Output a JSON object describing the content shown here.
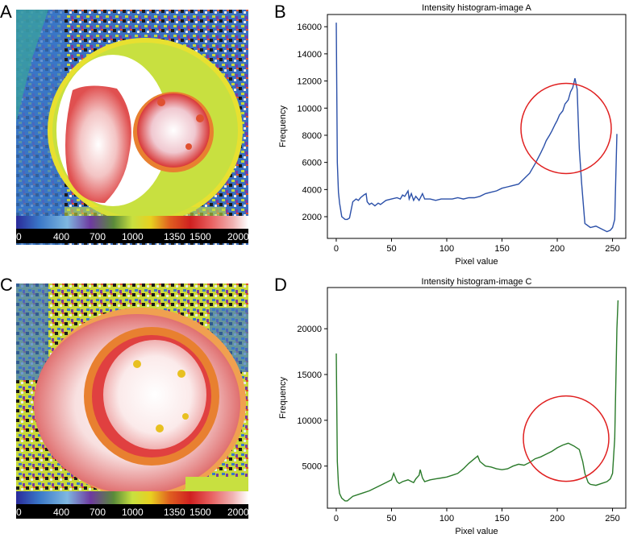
{
  "panels": {
    "a_letter": "A",
    "b_letter": "B",
    "c_letter": "C",
    "d_letter": "D"
  },
  "colorbar": {
    "tick_labels": [
      "0",
      "400",
      "700",
      "1000",
      "1350",
      "1500",
      "2000"
    ],
    "colors": [
      "#2a2a9a",
      "#3a78c8",
      "#7fb8e0",
      "#6e3aa0",
      "#5a8a3a",
      "#c8e040",
      "#e8d020",
      "#e06020",
      "#d02020",
      "#e86060",
      "#f0b0b0",
      "#ffffff"
    ]
  },
  "chart_data": [
    {
      "type": "line",
      "title": "Intensity histogram-image A",
      "xlabel": "Pixel value",
      "ylabel": "Frequency",
      "xlim": [
        -8,
        262
      ],
      "ylim": [
        400,
        16900
      ],
      "xticks": [
        0,
        50,
        100,
        150,
        200,
        250
      ],
      "yticks": [
        2000,
        4000,
        6000,
        8000,
        10000,
        12000,
        14000,
        16000
      ],
      "color": "#2a4fa8",
      "series": [
        {
          "name": "image A",
          "x": [
            0,
            1,
            2,
            3,
            5,
            8,
            10,
            12,
            15,
            18,
            20,
            22,
            25,
            27,
            28,
            30,
            32,
            35,
            38,
            40,
            45,
            50,
            55,
            58,
            60,
            62,
            65,
            66,
            68,
            70,
            72,
            75,
            78,
            80,
            85,
            90,
            95,
            100,
            105,
            110,
            115,
            120,
            125,
            130,
            135,
            140,
            145,
            150,
            155,
            160,
            165,
            170,
            175,
            180,
            185,
            188,
            190,
            193,
            195,
            198,
            200,
            202,
            205,
            207,
            210,
            212,
            214,
            216,
            218,
            219,
            220,
            222,
            225,
            230,
            235,
            240,
            245,
            248,
            250,
            252,
            254
          ],
          "y": [
            16300,
            6000,
            3800,
            3000,
            2000,
            1800,
            1800,
            1900,
            3100,
            3300,
            3200,
            3400,
            3600,
            3700,
            3100,
            2900,
            3000,
            2800,
            3000,
            2900,
            3200,
            3300,
            3400,
            3300,
            3600,
            3500,
            3900,
            3300,
            3700,
            3200,
            3500,
            3200,
            3700,
            3300,
            3300,
            3200,
            3300,
            3300,
            3300,
            3400,
            3300,
            3400,
            3400,
            3500,
            3700,
            3800,
            3900,
            4100,
            4200,
            4300,
            4400,
            4800,
            5200,
            5900,
            6700,
            7200,
            7600,
            8000,
            8300,
            8800,
            9100,
            9500,
            9800,
            10300,
            10600,
            11200,
            11500,
            12200,
            11400,
            9000,
            7000,
            4500,
            1500,
            1200,
            1300,
            1100,
            900,
            1000,
            1200,
            1800,
            8100
          ]
        }
      ],
      "annotations": [
        {
          "type": "circle",
          "center": [
            208,
            8500
          ]
        }
      ]
    },
    {
      "type": "line",
      "title": "Intensity histogram-image C",
      "xlabel": "Pixel value",
      "ylabel": "Frequency",
      "xlim": [
        -8,
        262
      ],
      "ylim": [
        400,
        24500
      ],
      "xticks": [
        0,
        50,
        100,
        150,
        200,
        250
      ],
      "yticks": [
        5000,
        10000,
        15000,
        20000
      ],
      "color": "#2a7a2a",
      "series": [
        {
          "name": "image C",
          "x": [
            0,
            1,
            2,
            3,
            5,
            8,
            10,
            12,
            15,
            20,
            25,
            30,
            35,
            40,
            45,
            50,
            52,
            55,
            57,
            60,
            65,
            70,
            72,
            75,
            76,
            78,
            80,
            85,
            90,
            95,
            100,
            105,
            110,
            115,
            120,
            125,
            128,
            130,
            135,
            140,
            145,
            150,
            155,
            160,
            165,
            170,
            175,
            180,
            185,
            190,
            195,
            200,
            205,
            210,
            215,
            220,
            223,
            225,
            228,
            230,
            235,
            240,
            245,
            248,
            250,
            252,
            254,
            255
          ],
          "y": [
            17300,
            5500,
            3000,
            2000,
            1500,
            1200,
            1200,
            1400,
            1700,
            1900,
            2100,
            2300,
            2600,
            2900,
            3200,
            3500,
            4200,
            3300,
            3100,
            3300,
            3500,
            3200,
            3600,
            4000,
            4600,
            3700,
            3300,
            3500,
            3600,
            3700,
            3800,
            4000,
            4200,
            4700,
            5300,
            5800,
            6100,
            5500,
            5000,
            4900,
            4700,
            4600,
            4700,
            5000,
            5200,
            5100,
            5400,
            5800,
            6000,
            6300,
            6600,
            7000,
            7300,
            7500,
            7200,
            6800,
            5500,
            4200,
            3200,
            3000,
            2900,
            3100,
            3300,
            3600,
            4200,
            8000,
            20000,
            23100
          ]
        }
      ],
      "annotations": [
        {
          "type": "circle",
          "center": [
            208,
            8000
          ]
        }
      ]
    }
  ]
}
